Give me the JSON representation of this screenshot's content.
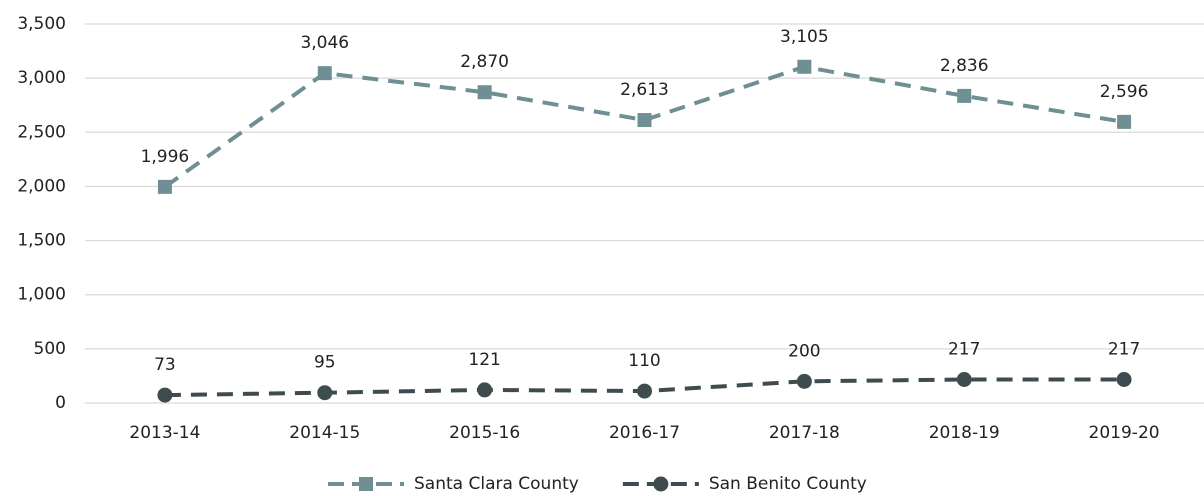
{
  "chart_data": {
    "type": "line",
    "categories": [
      "2013-14",
      "2014-15",
      "2015-16",
      "2016-17",
      "2017-18",
      "2018-19",
      "2019-20"
    ],
    "series": [
      {
        "name": "Santa Clara County",
        "color": "#6f8f94",
        "marker": "square",
        "values": [
          1996,
          3046,
          2870,
          2613,
          3105,
          2836,
          2596
        ],
        "value_labels": [
          "1,996",
          "3,046",
          "2,870",
          "2,613",
          "3,105",
          "2,836",
          "2,596"
        ]
      },
      {
        "name": "San Benito County",
        "color": "#3e4c4f",
        "marker": "circle",
        "values": [
          73,
          95,
          121,
          110,
          200,
          217,
          217
        ]
      }
    ],
    "ylim": [
      0,
      3500
    ],
    "yticks": [
      0,
      500,
      {
        "value": 1000,
        "label": "1,000"
      },
      {
        "value": 1500,
        "label": "1,500"
      },
      {
        "value": 2000,
        "label": "2,000"
      },
      {
        "value": 2500,
        "label": "2,500"
      },
      {
        "value": 3000,
        "label": "3,000"
      },
      {
        "value": 3500,
        "label": "3,500"
      }
    ],
    "grid": true,
    "legend": "bottom"
  }
}
